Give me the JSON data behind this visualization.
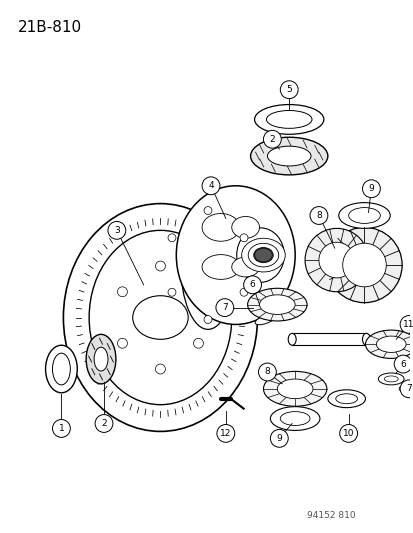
{
  "title": "21B-810",
  "watermark": "94152 810",
  "bg_color": "#ffffff",
  "fg_color": "#000000",
  "title_fontsize": 11,
  "watermark_fontsize": 6.5,
  "figsize": [
    4.14,
    5.33
  ],
  "dpi": 100
}
